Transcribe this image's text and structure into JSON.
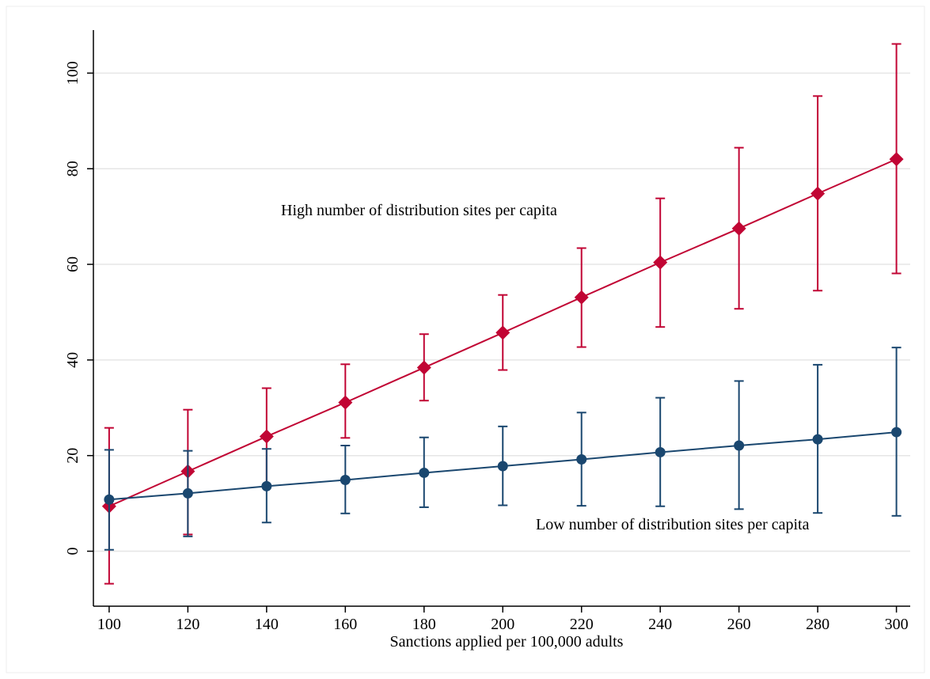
{
  "chart_data": {
    "type": "line",
    "x_label": "Sanctions applied per 100,000 adults",
    "annotations": [
      "High number of distribution sites per capita",
      "Low number of distribution sites per capita"
    ],
    "x": [
      100,
      120,
      140,
      160,
      180,
      200,
      220,
      240,
      260,
      280,
      300
    ],
    "xlim": [
      96,
      303.5
    ],
    "xticks": [
      100,
      120,
      140,
      160,
      180,
      200,
      220,
      240,
      260,
      280,
      300
    ],
    "ylim": [
      -11.5,
      109
    ],
    "yticks": [
      0,
      20,
      40,
      60,
      80,
      100
    ],
    "grid": true,
    "series": [
      {
        "name": "High",
        "color": "#c10534",
        "marker": "diamond",
        "values": [
          9.4,
          16.7,
          24.0,
          31.1,
          38.4,
          45.7,
          53.1,
          60.4,
          67.5,
          74.8,
          82.0
        ],
        "upper": [
          25.8,
          29.6,
          34.1,
          39.1,
          45.4,
          53.6,
          63.4,
          73.8,
          84.4,
          95.2,
          106.1
        ],
        "lower": [
          -6.8,
          3.5,
          13.7,
          23.7,
          31.5,
          37.9,
          42.7,
          46.9,
          50.7,
          54.5,
          58.1
        ]
      },
      {
        "name": "Low",
        "color": "#1a476f",
        "marker": "circle",
        "values": [
          10.8,
          12.1,
          13.6,
          14.9,
          16.4,
          17.8,
          19.2,
          20.7,
          22.1,
          23.4,
          24.9
        ],
        "upper": [
          21.2,
          21.0,
          21.4,
          22.1,
          23.8,
          26.1,
          29.0,
          32.1,
          35.6,
          39.0,
          42.6
        ],
        "lower": [
          0.3,
          3.1,
          6.0,
          7.9,
          9.2,
          9.6,
          9.5,
          9.4,
          8.8,
          8.0,
          7.4
        ]
      }
    ]
  }
}
